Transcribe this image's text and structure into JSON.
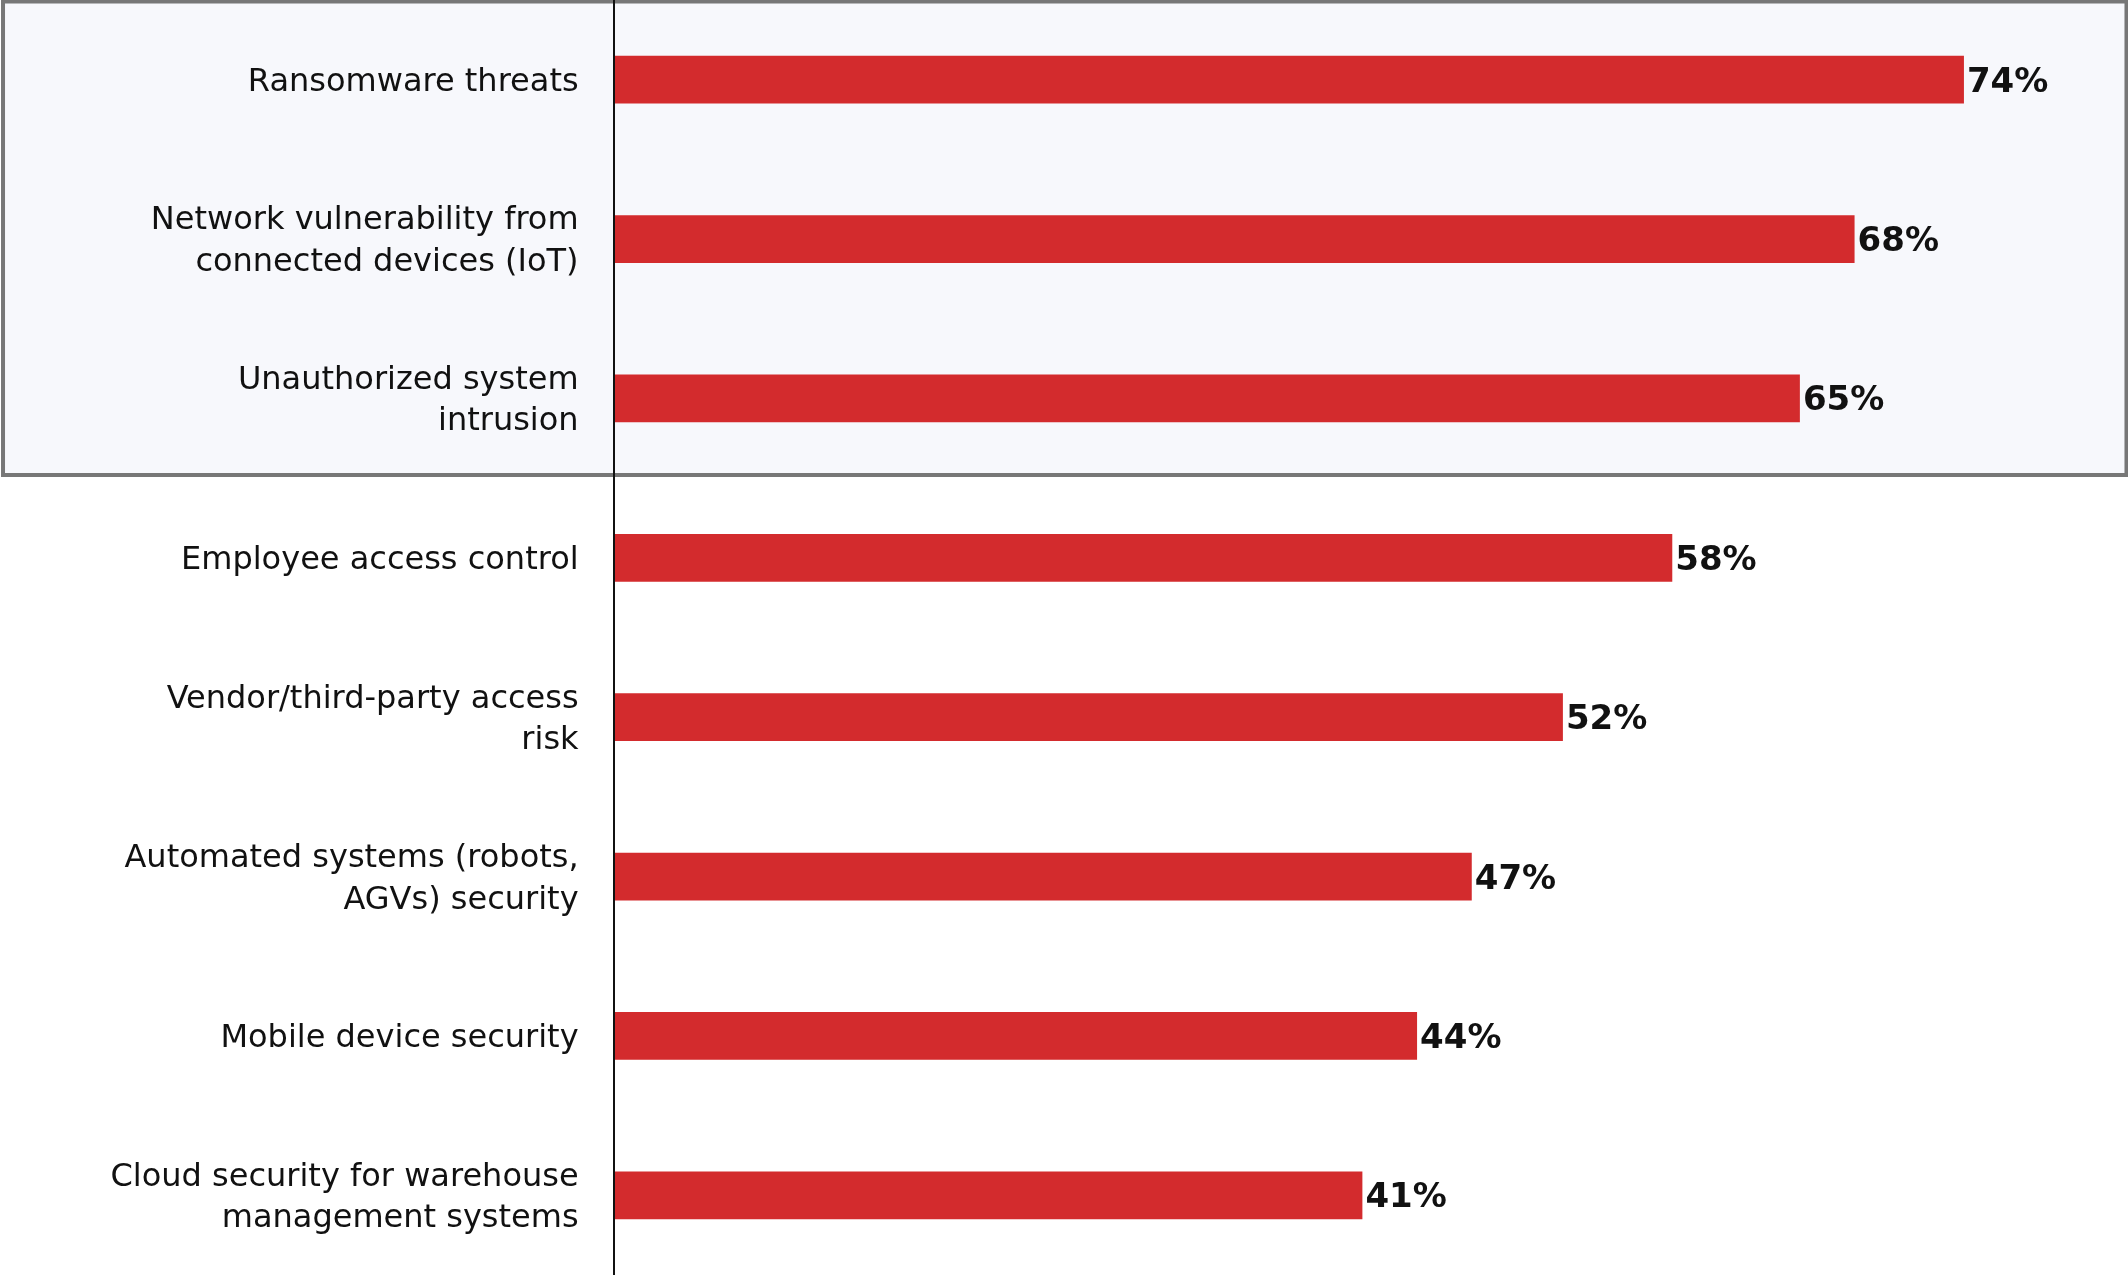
{
  "chart_data": {
    "type": "bar",
    "orientation": "horizontal",
    "categories": [
      "Ransomware threats",
      "Network vulnerability from connected devices (IoT)",
      "Unauthorized system intrusion",
      "Employee access control",
      "Vendor/third-party access risk",
      "Automated systems (robots, AGVs) security",
      "Mobile device security",
      "Cloud security for warehouse management systems"
    ],
    "values": [
      74,
      68,
      65,
      58,
      52,
      47,
      44,
      41
    ],
    "value_labels": [
      "74%",
      "68%",
      "65%",
      "58%",
      "52%",
      "47%",
      "44%",
      "41%"
    ],
    "color": "#d32b2d",
    "xlim": [
      0,
      83
    ],
    "tick_labels": "y",
    "bands": [
      {
        "axis": "y",
        "from": "Ransomware threats",
        "to": "Unauthorized system intrusion",
        "color": "#f7f8fc"
      }
    ]
  }
}
